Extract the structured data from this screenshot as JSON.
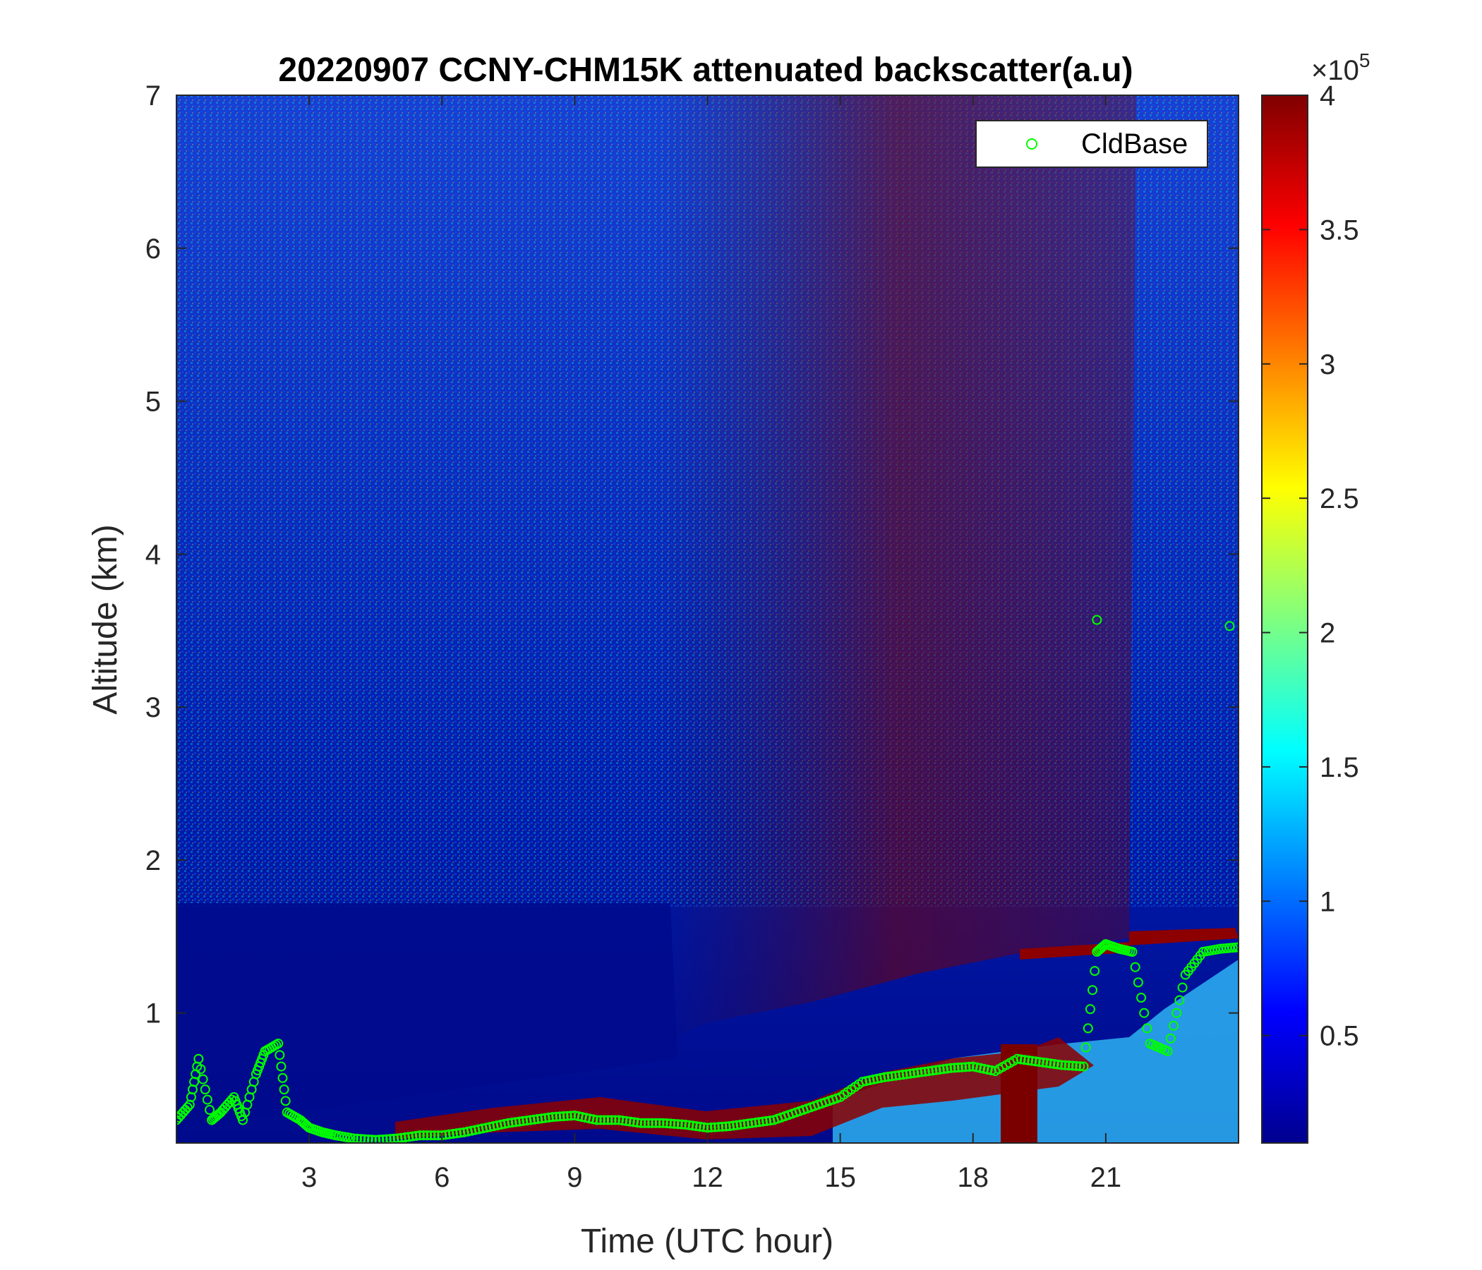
{
  "chart_data": {
    "type": "heatmap",
    "title": "20220907 CCNY-CHM15K attenuated backscatter(a.u)",
    "xlabel": "Time (UTC hour)",
    "ylabel": "Altitude (km)",
    "xlim": [
      0,
      24
    ],
    "ylim": [
      0.15,
      7
    ],
    "xticks": [
      3,
      6,
      9,
      12,
      15,
      18,
      21
    ],
    "yticks": [
      1,
      2,
      3,
      4,
      5,
      6,
      7
    ],
    "colormap": "jet",
    "colorbar": {
      "clim": [
        0.1,
        4
      ],
      "ticks": [
        0.5,
        1,
        1.5,
        2,
        2.5,
        3,
        3.5,
        4
      ],
      "exponent_label": "×10",
      "exponent": "5"
    },
    "legend": {
      "placement": "top-right",
      "entries": [
        {
          "name": "CldBase",
          "marker": "circle",
          "color": "#00ff00"
        }
      ]
    },
    "series": [
      {
        "name": "CldBase",
        "x": [
          0.0,
          0.3,
          0.5,
          0.8,
          1.0,
          1.3,
          1.5,
          1.8,
          2.0,
          2.3,
          2.5,
          2.8,
          3.0,
          3.3,
          3.6,
          4.0,
          4.5,
          5.0,
          5.5,
          6.0,
          6.5,
          7.0,
          7.5,
          8.0,
          8.5,
          9.0,
          9.5,
          10.0,
          10.5,
          11.0,
          11.5,
          12.0,
          12.5,
          13.0,
          13.5,
          14.0,
          14.5,
          15.0,
          15.5,
          16.0,
          16.5,
          17.0,
          17.5,
          18.0,
          18.5,
          19.0,
          19.5,
          20.0,
          20.5,
          20.8,
          21.0,
          21.3,
          21.6,
          22.0,
          22.4,
          22.8,
          23.2,
          23.6,
          24.0
        ],
        "y": [
          0.3,
          0.4,
          0.7,
          0.3,
          0.35,
          0.45,
          0.3,
          0.6,
          0.75,
          0.8,
          0.35,
          0.3,
          0.25,
          0.22,
          0.2,
          0.18,
          0.17,
          0.18,
          0.2,
          0.2,
          0.22,
          0.25,
          0.28,
          0.3,
          0.32,
          0.33,
          0.3,
          0.3,
          0.28,
          0.28,
          0.27,
          0.25,
          0.26,
          0.28,
          0.3,
          0.35,
          0.4,
          0.45,
          0.55,
          0.58,
          0.6,
          0.62,
          0.64,
          0.65,
          0.62,
          0.7,
          0.68,
          0.66,
          0.65,
          1.4,
          1.45,
          1.42,
          1.4,
          0.8,
          0.75,
          1.25,
          1.4,
          1.42,
          1.43
        ]
      },
      {
        "name": "CldBase",
        "x": [
          20.8,
          23.8
        ],
        "y": [
          3.57,
          3.53
        ]
      }
    ]
  }
}
